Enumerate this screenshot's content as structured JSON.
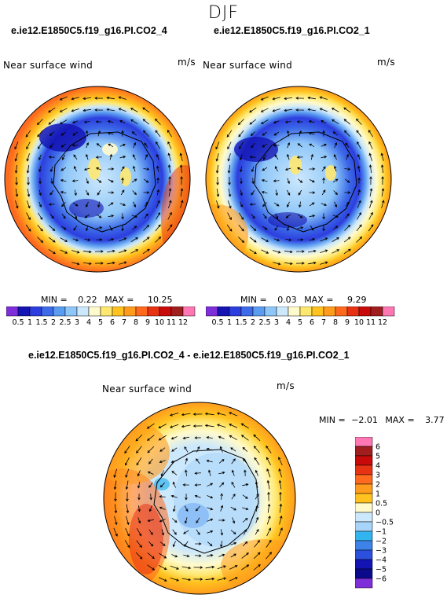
{
  "season": "DJF",
  "panels": [
    {
      "case": "e.ie12.E1850C5.f19_g16.PI.CO2_4",
      "field": "Near surface wind",
      "units": "m/s",
      "min_label": "MIN =",
      "min_value": "0.22",
      "max_label": "MAX =",
      "max_value": "10.25"
    },
    {
      "case": "e.ie12.E1850C5.f19_g16.PI.CO2_1",
      "field": "Near surface wind",
      "units": "m/s",
      "min_label": "MIN =",
      "min_value": "0.03",
      "max_label": "MAX =",
      "max_value": "9.29"
    },
    {
      "case": "e.ie12.E1850C5.f19_g16.PI.CO2_4 - e.ie12.E1850C5.f19_g16.PI.CO2_1",
      "field": "Near surface wind",
      "units": "m/s",
      "min_label": "MIN =",
      "min_value": "−2.01",
      "max_label": "MAX =",
      "max_value": "3.77"
    }
  ],
  "abs_colorbar": {
    "labels": [
      "0.5",
      "1",
      "1.5",
      "2",
      "2.5",
      "3",
      "4",
      "5",
      "6",
      "7",
      "8",
      "9",
      "10",
      "11",
      "12"
    ],
    "colors": [
      "#7f2fd9",
      "#1414b4",
      "#2c3ede",
      "#3c6ae8",
      "#5a9cf0",
      "#8ec6f8",
      "#cce8fc",
      "#fffacc",
      "#ffe870",
      "#ffc21e",
      "#ff9c1e",
      "#ff6a1e",
      "#e83214",
      "#c80a0a",
      "#a01e1e",
      "#ff78b4"
    ]
  },
  "diff_colorbar": {
    "labels": [
      "6",
      "5",
      "4",
      "3",
      "2",
      "1",
      "0.5",
      "0",
      "−0.5",
      "−1",
      "−2",
      "−3",
      "−4",
      "−5",
      "−6"
    ],
    "colors": [
      "#ff78b4",
      "#a01e1e",
      "#c80a0a",
      "#e83214",
      "#ff6a1e",
      "#ff9c1e",
      "#ffc21e",
      "#fffacc",
      "#cce8fc",
      "#a8d4fa",
      "#32b4ee",
      "#3c82e8",
      "#2c50de",
      "#1414b4",
      "#0a0a8c",
      "#7f2fd9"
    ]
  }
}
